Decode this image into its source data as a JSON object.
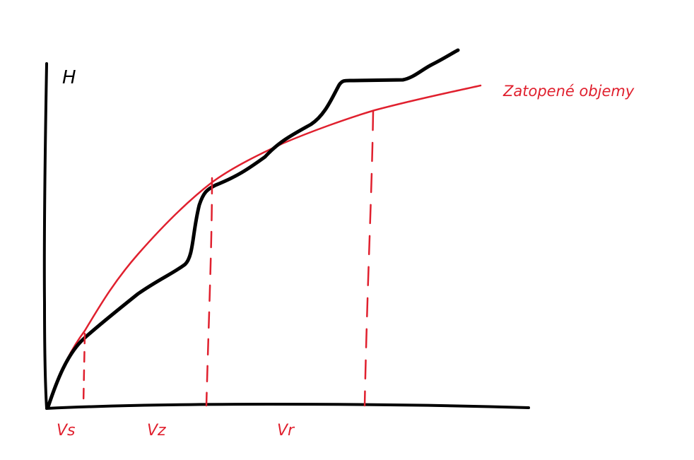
{
  "axes": {
    "y_label": "H"
  },
  "curves": {
    "red_label": "Zatopené objemy"
  },
  "markers": {
    "vs": "Vs",
    "vz": "Vz",
    "vr": "Vr"
  },
  "colors": {
    "black_curve": "#000000",
    "red_curve": "#e0202e"
  }
}
